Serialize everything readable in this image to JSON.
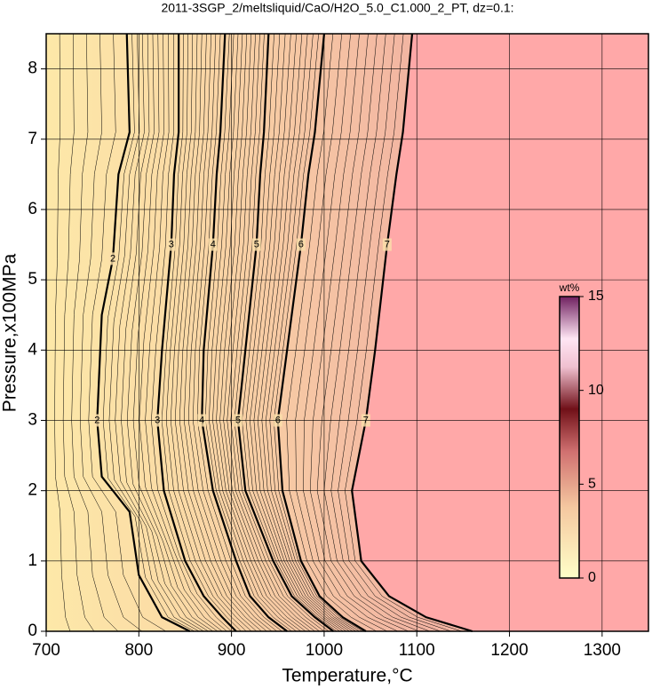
{
  "chart_data": {
    "type": "contour",
    "title": "2011-3SGP_2/meltsliquid/CaO/H2O_5.0_C1.000_2_PT, dz=0.1:",
    "x_label": "Temperature,°C",
    "y_label": "Pressure,x100MPa",
    "xlim": [
      700,
      1350
    ],
    "ylim": [
      0,
      8.5
    ],
    "xticks": [
      700,
      800,
      900,
      1000,
      1100,
      1200,
      1300
    ],
    "yticks": [
      0,
      1,
      2,
      3,
      4,
      5,
      6,
      7,
      8
    ],
    "grid": true,
    "low_color": "#fde8a8",
    "high_color": "#ffa8a8",
    "contours": [
      {
        "level": 2,
        "x": [
          787,
          790,
          778,
          772,
          760,
          755,
          760,
          790,
          800,
          825,
          855
        ],
        "y": [
          8.5,
          7.1,
          6.5,
          5.3,
          4.5,
          3,
          2.2,
          1.7,
          0.8,
          0.2,
          0
        ]
      },
      {
        "level": 3,
        "x": [
          843,
          843,
          838,
          835,
          825,
          820,
          827,
          850,
          870,
          890,
          905
        ],
        "y": [
          8.5,
          7.1,
          6.5,
          5.5,
          4,
          3,
          2,
          1,
          0.5,
          0.2,
          0
        ]
      },
      {
        "level": 4,
        "x": [
          893,
          888,
          884,
          880,
          870,
          868,
          880,
          905,
          920,
          940,
          960
        ],
        "y": [
          8.5,
          7.1,
          6.5,
          5.5,
          4,
          3,
          2,
          1,
          0.5,
          0.2,
          0
        ]
      },
      {
        "level": 5,
        "x": [
          940,
          935,
          931,
          927,
          915,
          907,
          915,
          945,
          965,
          990,
          1010
        ],
        "y": [
          8.5,
          7.1,
          6.5,
          5.5,
          4,
          3,
          2,
          1,
          0.5,
          0.2,
          0
        ]
      },
      {
        "level": 6,
        "x": [
          1000,
          990,
          983,
          975,
          960,
          950,
          955,
          975,
          995,
          1020,
          1045
        ],
        "y": [
          8.5,
          7.1,
          6.5,
          5.5,
          4,
          3,
          2,
          1,
          0.5,
          0.2,
          0
        ]
      },
      {
        "level": 7,
        "x": [
          1095,
          1085,
          1078,
          1068,
          1055,
          1045,
          1030,
          1040,
          1070,
          1110,
          1160
        ],
        "y": [
          8.5,
          7.1,
          6.5,
          5.5,
          4,
          3,
          2,
          1,
          0.5,
          0.2,
          0
        ]
      }
    ],
    "colorbar": {
      "label": "wt%",
      "lim": [
        0,
        15
      ],
      "ticks": [
        0,
        5,
        10,
        15
      ]
    }
  }
}
